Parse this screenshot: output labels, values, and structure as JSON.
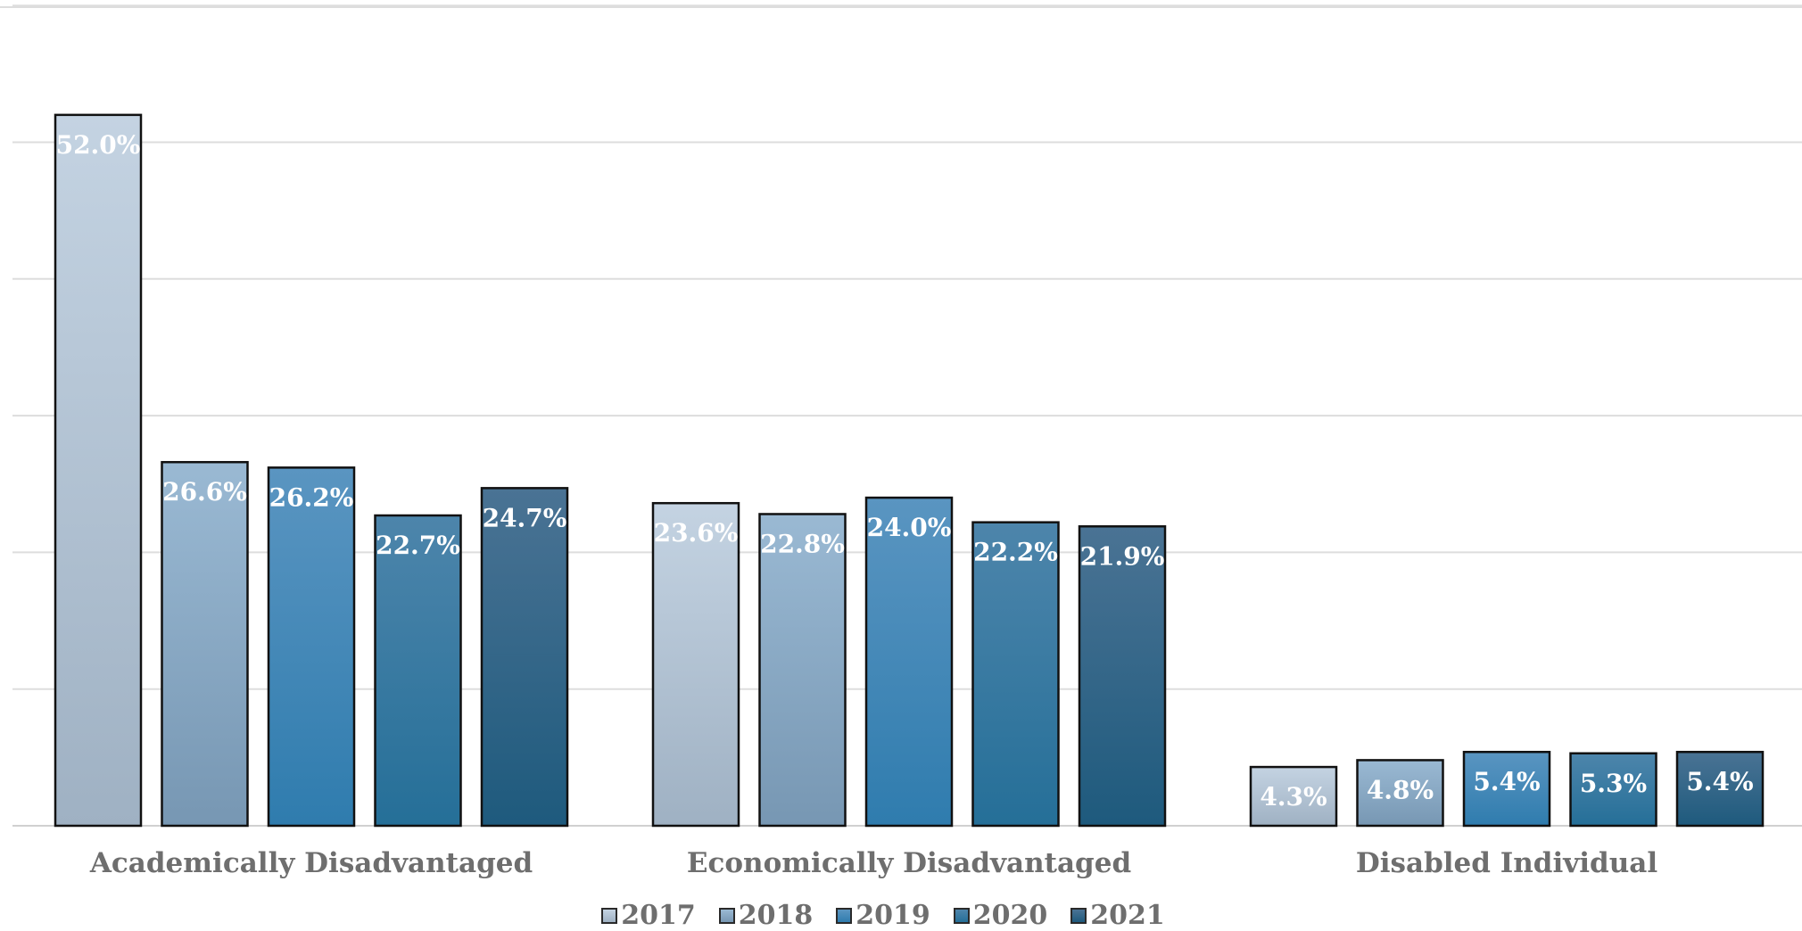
{
  "chart_data": {
    "type": "bar",
    "title": "",
    "xlabel": "",
    "ylabel": "",
    "ylim": [
      0,
      60
    ],
    "grid": true,
    "legend_position": "bottom",
    "value_format": "percent-1dp",
    "categories": [
      "Academically Disadvantaged",
      "Economically Disadvantaged",
      "Disabled Individual"
    ],
    "series": [
      {
        "name": "2017",
        "values": [
          52.0,
          23.6,
          4.3
        ],
        "color_top": "#c4d3e2",
        "color_bottom": "#9fb1c3"
      },
      {
        "name": "2018",
        "values": [
          26.6,
          22.8,
          4.8
        ],
        "color_top": "#9ab9d3",
        "color_bottom": "#7797b3"
      },
      {
        "name": "2019",
        "values": [
          26.2,
          24.0,
          5.4
        ],
        "color_top": "#5a95c1",
        "color_bottom": "#2f7cae"
      },
      {
        "name": "2020",
        "values": [
          22.7,
          22.2,
          5.3
        ],
        "color_top": "#4d85ab",
        "color_bottom": "#256f98"
      },
      {
        "name": "2021",
        "values": [
          24.7,
          21.9,
          5.4
        ],
        "color_top": "#4a7394",
        "color_bottom": "#1e5a7d"
      }
    ],
    "data_labels": [
      [
        "52.0%",
        "23.6%",
        "4.3%"
      ],
      [
        "26.6%",
        "22.8%",
        "4.8%"
      ],
      [
        "26.2%",
        "24.0%",
        "5.4%"
      ],
      [
        "22.7%",
        "22.2%",
        "5.3%"
      ],
      [
        "24.7%",
        "21.9%",
        "5.4%"
      ]
    ]
  }
}
